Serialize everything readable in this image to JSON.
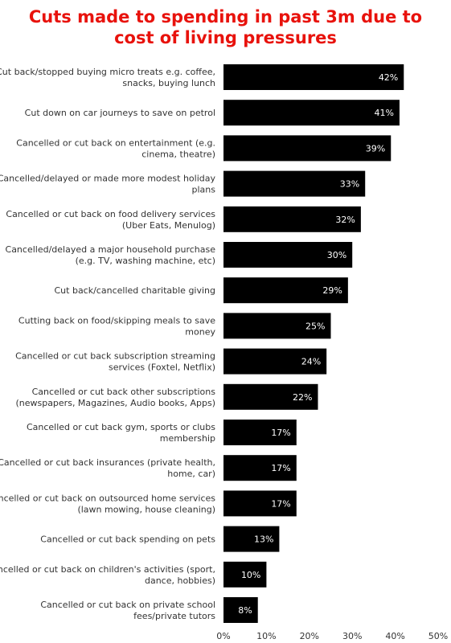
{
  "title": {
    "line1": "Cuts made to spending in past 3m due to",
    "line2": "cost of living pressures"
  },
  "colors": {
    "title": "#e8120c",
    "bar": "#000000",
    "bar_label": "#ffffff",
    "text": "#333333"
  },
  "chart_data": {
    "type": "bar",
    "orientation": "horizontal",
    "title": "Cuts made to spending in past 3m due to cost of living pressures",
    "categories": [
      [
        "Cut back/stopped buying micro treats e.g. coffee,",
        "snacks, buying lunch"
      ],
      [
        "Cut down on car journeys to save on petrol"
      ],
      [
        "Cancelled or cut back on entertainment (e.g.",
        "cinema, theatre)"
      ],
      [
        "Cancelled/delayed or made more modest holiday",
        "plans"
      ],
      [
        "Cancelled or cut back on food delivery services",
        "(Uber Eats, Menulog)"
      ],
      [
        "Cancelled/delayed a major household purchase",
        "(e.g. TV, washing machine, etc)"
      ],
      [
        "Cut back/cancelled charitable giving"
      ],
      [
        "Cutting back on food/skipping meals to save",
        "money"
      ],
      [
        "Cancelled or cut back subscription streaming",
        "services (Foxtel, Netflix)"
      ],
      [
        "Cancelled or cut back other subscriptions",
        "(newspapers, Magazines, Audio books, Apps)"
      ],
      [
        "Cancelled or cut back gym, sports or clubs",
        "membership"
      ],
      [
        "Cancelled or cut back insurances (private health,",
        "home, car)"
      ],
      [
        "Cancelled or cut back on outsourced home services",
        "(lawn mowing, house cleaning)"
      ],
      [
        "Cancelled or cut back spending on pets"
      ],
      [
        "Cancelled or cut back on children's activities (sport,",
        "dance, hobbies)"
      ],
      [
        "Cancelled or cut back on private school",
        "fees/private tutors"
      ]
    ],
    "values": [
      42,
      41,
      39,
      33,
      32,
      30,
      29,
      25,
      24,
      22,
      17,
      17,
      17,
      13,
      10,
      8
    ],
    "value_labels": [
      "42%",
      "41%",
      "39%",
      "33%",
      "32%",
      "30%",
      "29%",
      "25%",
      "24%",
      "22%",
      "17%",
      "17%",
      "17%",
      "13%",
      "10%",
      "8%"
    ],
    "xlim": [
      0,
      50
    ],
    "xticks": [
      0,
      10,
      20,
      30,
      40,
      50
    ],
    "xtick_labels": [
      "0%",
      "10%",
      "20%",
      "30%",
      "40%",
      "50%"
    ],
    "grid": false,
    "legend": "none"
  }
}
